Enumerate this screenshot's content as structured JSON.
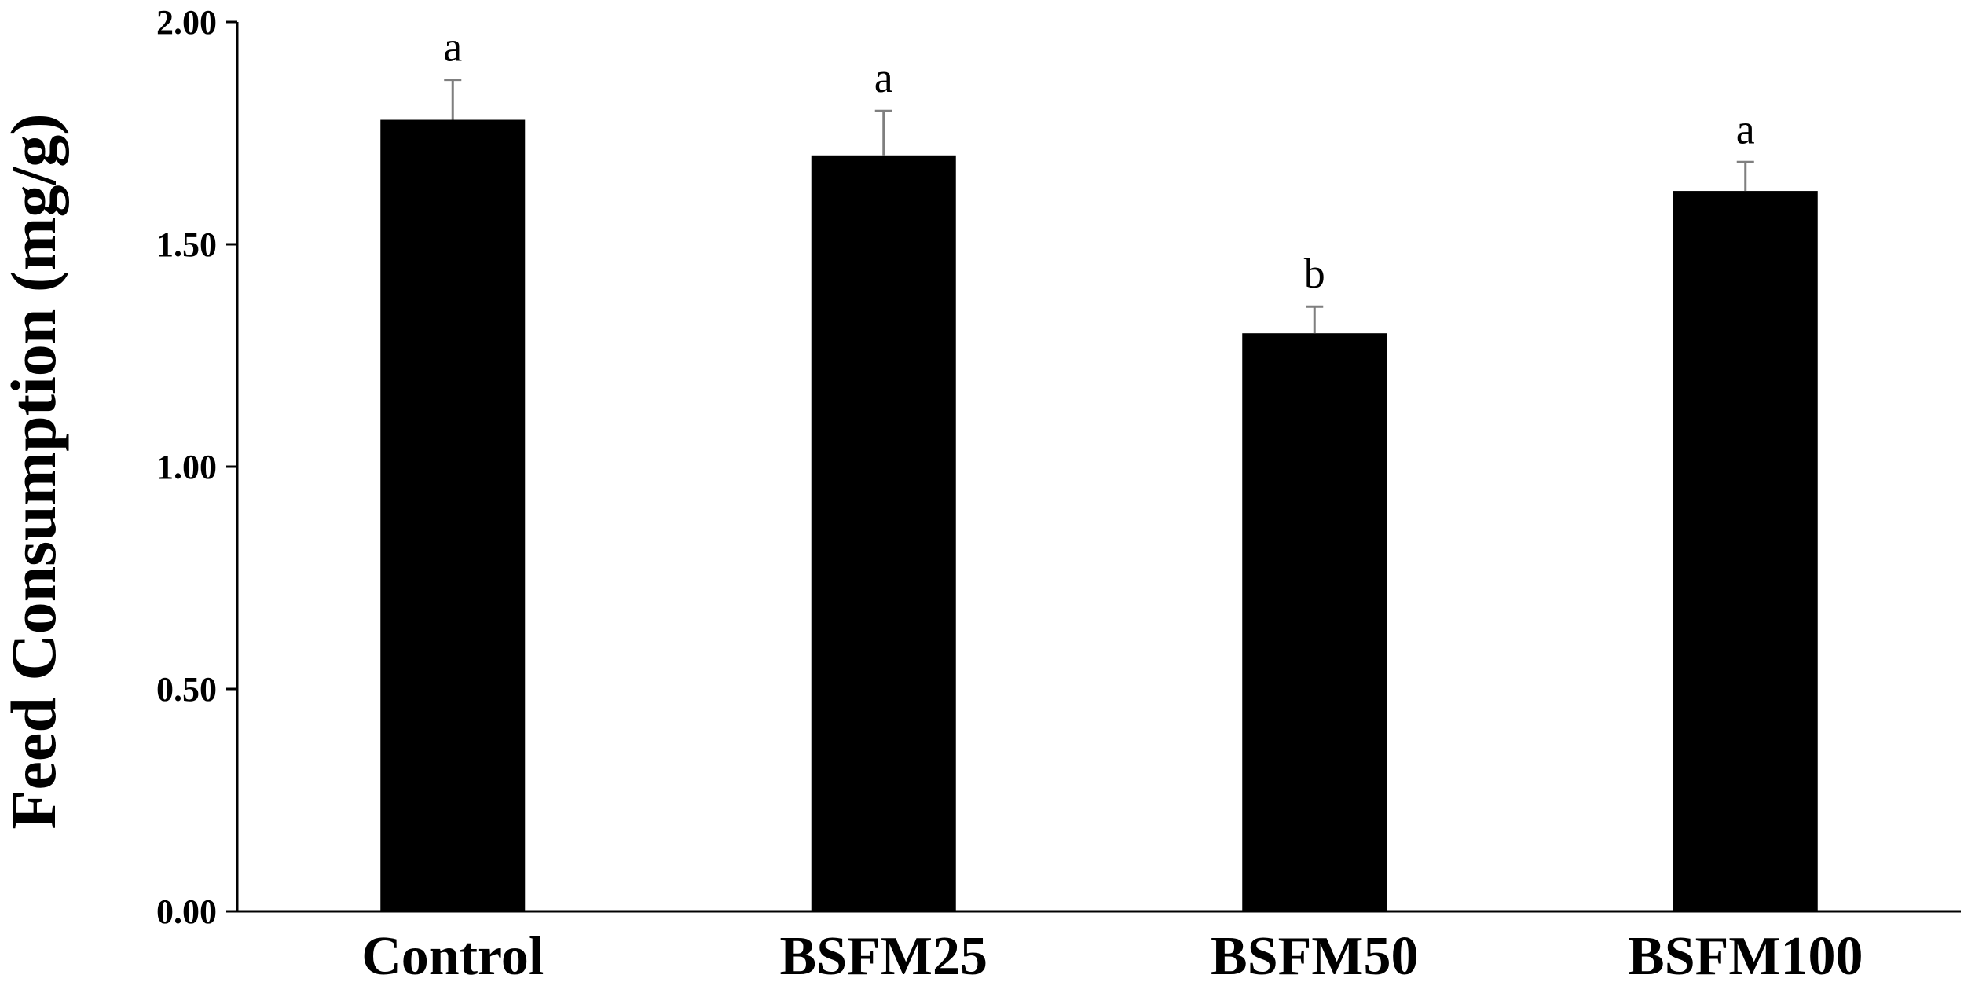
{
  "chart_data": {
    "type": "bar",
    "title": "",
    "xlabel": "",
    "ylabel": "Feed Consumption (mg/g)",
    "categories": [
      "Control",
      "BSFM25",
      "BSFM50",
      "BSFM100"
    ],
    "values": [
      1.78,
      1.7,
      1.3,
      1.62
    ],
    "errors": [
      0.09,
      0.1,
      0.06,
      0.065
    ],
    "significance": [
      "a",
      "a",
      "b",
      "a"
    ],
    "ylim": [
      0,
      2.0
    ],
    "yticks": [
      0.0,
      0.5,
      1.0,
      1.5,
      2.0
    ],
    "ytick_labels": [
      "0.00",
      "0.50",
      "1.00",
      "1.50",
      "2.00"
    ],
    "grid": false,
    "bar_color": "#000000",
    "error_bar_color": "#7f7f7f"
  }
}
